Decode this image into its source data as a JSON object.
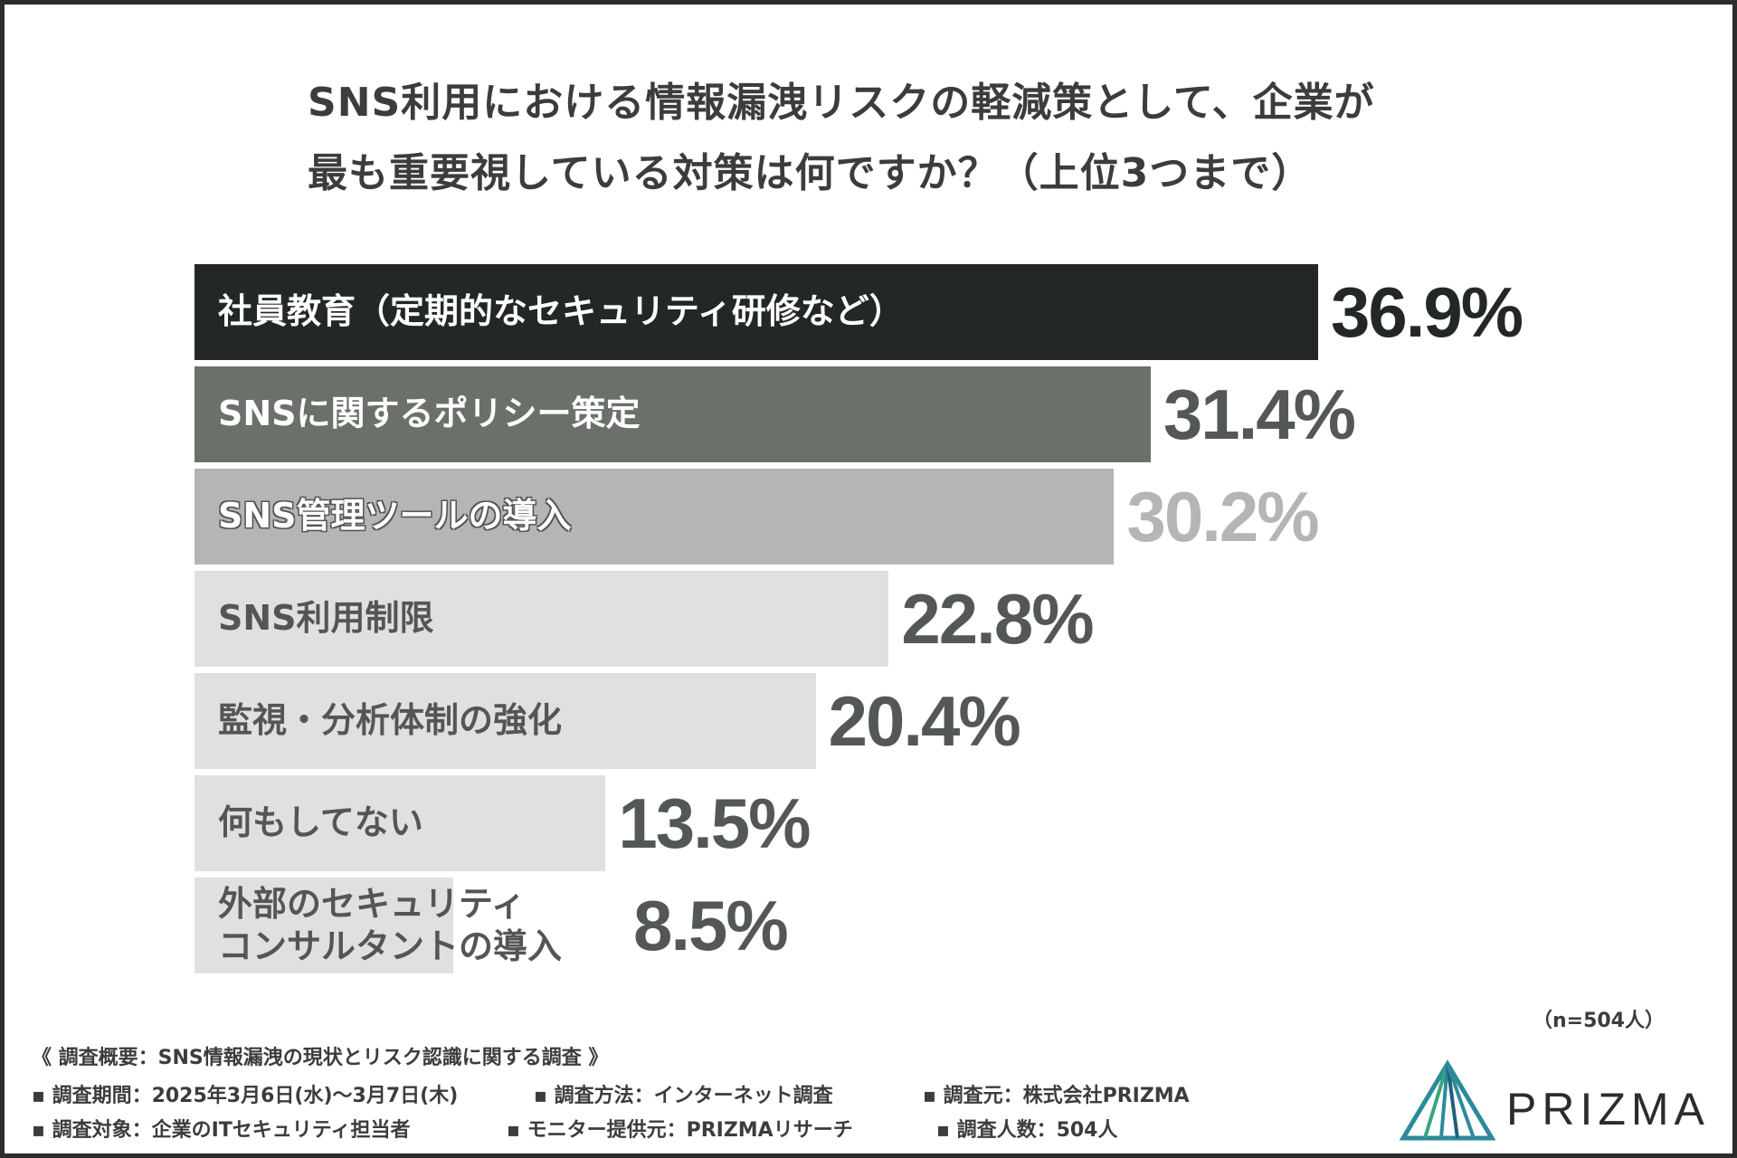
{
  "title": {
    "line1": "SNS利用における情報漏洩リスクの軽減策として、企業が",
    "line2": "最も重要視している対策は何ですか？（上位3つまで）"
  },
  "chart_data": {
    "type": "bar",
    "orientation": "horizontal",
    "categories": [
      "社員教育（定期的なセキュリティ研修など）",
      "SNSに関するポリシー策定",
      "SNS管理ツールの導入",
      "SNS利用制限",
      "監視・分析体制の強化",
      "何もしてない",
      "外部のセキュリティ\nコンサルタントの導入"
    ],
    "values": [
      36.9,
      31.4,
      30.2,
      22.8,
      20.4,
      13.5,
      8.5
    ],
    "value_labels": [
      "36.9%",
      "31.4%",
      "30.2%",
      "22.8%",
      "20.4%",
      "13.5%",
      "8.5%"
    ],
    "unit": "%",
    "bar_colors": [
      "#232824",
      "#6b706b",
      "#b5b5b5",
      "#e0e0e0",
      "#e0e0e0",
      "#e0e0e0",
      "#e0e0e0"
    ],
    "label_colors": [
      "#ffffff",
      "#ffffff",
      "#ffffff",
      "#555555",
      "#555555",
      "#555555",
      "#555555"
    ],
    "value_colors": [
      "#232824",
      "#545854",
      "#b5b5b5",
      "#545854",
      "#545854",
      "#545854",
      "#545854"
    ]
  },
  "sample_size": "（n=504人）",
  "footer": {
    "heading": "《 調査概要：SNS情報漏洩の現状とリスク認識に関する調査 》",
    "period": "▪ 調査期間：2025年3月6日(水)〜3月7日(木)",
    "method": "▪ 調査方法：インターネット調査",
    "source": "▪ 調査元：株式会社PRIZMA",
    "target": "▪ 調査対象：企業のITセキュリティ担当者",
    "provider": "▪ モニター提供元：PRIZMAリサーチ",
    "count": "▪ 調査人数：504人"
  },
  "logo": {
    "text": "PRIZMA",
    "colors": [
      "#2c8a9c",
      "#3aa57a",
      "#1f5f7a"
    ]
  }
}
